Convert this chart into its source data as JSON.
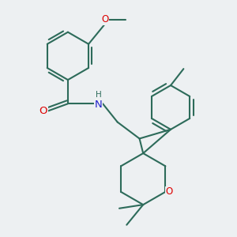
{
  "bg_color": "#edf0f2",
  "bond_color": "#2d6b5a",
  "bond_width": 1.5,
  "atom_colors": {
    "O": "#dd0000",
    "N": "#2222cc",
    "C": "#2d6b5a"
  },
  "font_size": 8.5,
  "title": ""
}
